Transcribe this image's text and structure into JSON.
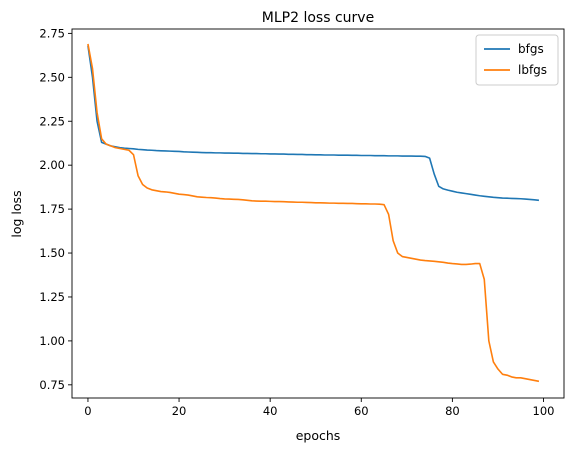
{
  "chart_data": {
    "type": "line",
    "title": "MLP2 loss curve",
    "xlabel": "epochs",
    "ylabel": "log loss",
    "xlim": [
      -3.5,
      104.5
    ],
    "ylim": [
      0.675,
      2.775
    ],
    "xticks": [
      0,
      20,
      40,
      60,
      80,
      100
    ],
    "xtick_labels": [
      "0",
      "20",
      "40",
      "60",
      "80",
      "100"
    ],
    "yticks": [
      0.75,
      1.0,
      1.25,
      1.5,
      1.75,
      2.0,
      2.25,
      2.5,
      2.75
    ],
    "ytick_labels": [
      "0.75",
      "1.00",
      "1.25",
      "1.50",
      "1.75",
      "2.00",
      "2.25",
      "2.50",
      "2.75"
    ],
    "grid": false,
    "legend_position": "top-right",
    "series": [
      {
        "name": "bfgs",
        "color": "#1f77b4",
        "x": [
          0,
          1,
          2,
          3,
          4,
          5,
          6,
          7,
          8,
          9,
          10,
          11,
          12,
          13,
          14,
          15,
          16,
          17,
          18,
          19,
          20,
          21,
          22,
          23,
          24,
          25,
          26,
          27,
          28,
          29,
          30,
          31,
          32,
          33,
          34,
          35,
          36,
          37,
          38,
          39,
          40,
          41,
          42,
          43,
          44,
          45,
          46,
          47,
          48,
          49,
          50,
          51,
          52,
          53,
          54,
          55,
          56,
          57,
          58,
          59,
          60,
          61,
          62,
          63,
          64,
          65,
          66,
          67,
          68,
          69,
          70,
          71,
          72,
          73,
          74,
          75,
          76,
          77,
          78,
          79,
          80,
          81,
          82,
          83,
          84,
          85,
          86,
          87,
          88,
          89,
          90,
          91,
          92,
          93,
          94,
          95,
          96,
          97,
          98,
          99
        ],
        "y": [
          2.68,
          2.5,
          2.25,
          2.13,
          2.12,
          2.11,
          2.105,
          2.1,
          2.097,
          2.095,
          2.093,
          2.09,
          2.088,
          2.086,
          2.085,
          2.083,
          2.082,
          2.081,
          2.08,
          2.079,
          2.078,
          2.076,
          2.075,
          2.074,
          2.073,
          2.072,
          2.071,
          2.071,
          2.07,
          2.07,
          2.069,
          2.069,
          2.068,
          2.068,
          2.067,
          2.067,
          2.066,
          2.066,
          2.065,
          2.065,
          2.064,
          2.064,
          2.063,
          2.063,
          2.062,
          2.062,
          2.061,
          2.061,
          2.06,
          2.06,
          2.059,
          2.059,
          2.058,
          2.058,
          2.058,
          2.057,
          2.057,
          2.057,
          2.056,
          2.056,
          2.055,
          2.055,
          2.055,
          2.054,
          2.054,
          2.054,
          2.053,
          2.053,
          2.053,
          2.052,
          2.052,
          2.052,
          2.051,
          2.051,
          2.05,
          2.04,
          1.95,
          1.88,
          1.865,
          1.858,
          1.852,
          1.846,
          1.842,
          1.838,
          1.834,
          1.83,
          1.826,
          1.823,
          1.82,
          1.817,
          1.815,
          1.813,
          1.812,
          1.811,
          1.81,
          1.809,
          1.807,
          1.805,
          1.803,
          1.8
        ]
      },
      {
        "name": "lbfgs",
        "color": "#ff7f0e",
        "x": [
          0,
          1,
          2,
          3,
          4,
          5,
          6,
          7,
          8,
          9,
          10,
          11,
          12,
          13,
          14,
          15,
          16,
          17,
          18,
          19,
          20,
          21,
          22,
          23,
          24,
          25,
          26,
          27,
          28,
          29,
          30,
          31,
          32,
          33,
          34,
          35,
          36,
          37,
          38,
          39,
          40,
          41,
          42,
          43,
          44,
          45,
          46,
          47,
          48,
          49,
          50,
          51,
          52,
          53,
          54,
          55,
          56,
          57,
          58,
          59,
          60,
          61,
          62,
          63,
          64,
          65,
          66,
          67,
          68,
          69,
          70,
          71,
          72,
          73,
          74,
          75,
          76,
          77,
          78,
          79,
          80,
          81,
          82,
          83,
          84,
          85,
          86,
          87,
          88,
          89,
          90,
          91,
          92,
          93,
          94,
          95,
          96,
          97,
          98,
          99
        ],
        "y": [
          2.69,
          2.55,
          2.3,
          2.15,
          2.12,
          2.11,
          2.1,
          2.095,
          2.09,
          2.085,
          2.06,
          1.94,
          1.89,
          1.87,
          1.86,
          1.855,
          1.85,
          1.848,
          1.845,
          1.84,
          1.835,
          1.833,
          1.83,
          1.825,
          1.82,
          1.818,
          1.816,
          1.815,
          1.813,
          1.81,
          1.808,
          1.807,
          1.806,
          1.805,
          1.803,
          1.8,
          1.797,
          1.796,
          1.795,
          1.795,
          1.794,
          1.793,
          1.793,
          1.792,
          1.791,
          1.79,
          1.789,
          1.789,
          1.788,
          1.787,
          1.786,
          1.786,
          1.785,
          1.784,
          1.784,
          1.783,
          1.783,
          1.782,
          1.782,
          1.781,
          1.78,
          1.78,
          1.779,
          1.779,
          1.778,
          1.775,
          1.72,
          1.57,
          1.5,
          1.48,
          1.475,
          1.47,
          1.465,
          1.46,
          1.457,
          1.455,
          1.453,
          1.45,
          1.447,
          1.443,
          1.44,
          1.438,
          1.435,
          1.435,
          1.437,
          1.44,
          1.44,
          1.35,
          1.0,
          0.88,
          0.84,
          0.81,
          0.805,
          0.795,
          0.79,
          0.79,
          0.785,
          0.78,
          0.775,
          0.77
        ]
      }
    ]
  }
}
